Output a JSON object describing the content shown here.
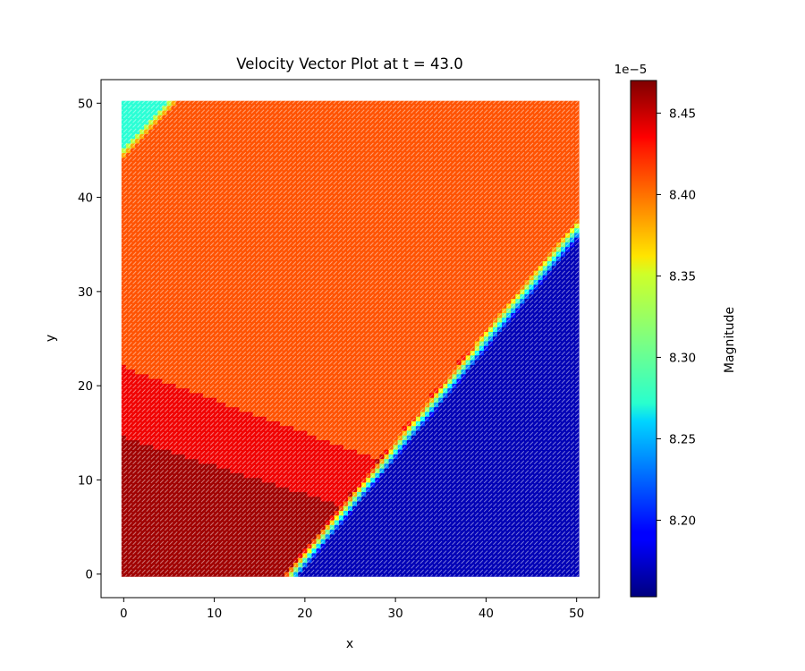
{
  "chart_data": {
    "type": "heatmap",
    "title": "Velocity Vector Plot at t = 43.0",
    "xlabel": "x",
    "ylabel": "y",
    "xlim": [
      -2.5,
      52.5
    ],
    "ylim": [
      -2.5,
      52.5
    ],
    "x_ticks": [
      "0",
      "10",
      "20",
      "30",
      "40",
      "50"
    ],
    "y_ticks": [
      "0",
      "10",
      "20",
      "30",
      "40",
      "50"
    ],
    "grid_extent": {
      "x": [
        0,
        50
      ],
      "y": [
        0,
        50
      ]
    },
    "grid_step": 0.5,
    "colormap": "jet",
    "colorbar": {
      "label": "Magnitude",
      "offset_text": "1e−5",
      "range": [
        8.153,
        8.47
      ],
      "ticks": [
        "8.20",
        "8.25",
        "8.30",
        "8.35",
        "8.40",
        "8.45"
      ]
    },
    "regions": [
      {
        "name": "upper-left corner",
        "magnitude": 8.285
      },
      {
        "name": "upper band",
        "magnitude": 8.405
      },
      {
        "name": "middle-left band",
        "magnitude": 8.435
      },
      {
        "name": "lower-left band",
        "magnitude": 8.46
      },
      {
        "name": "lower-right triangle",
        "magnitude": 8.17
      }
    ]
  }
}
